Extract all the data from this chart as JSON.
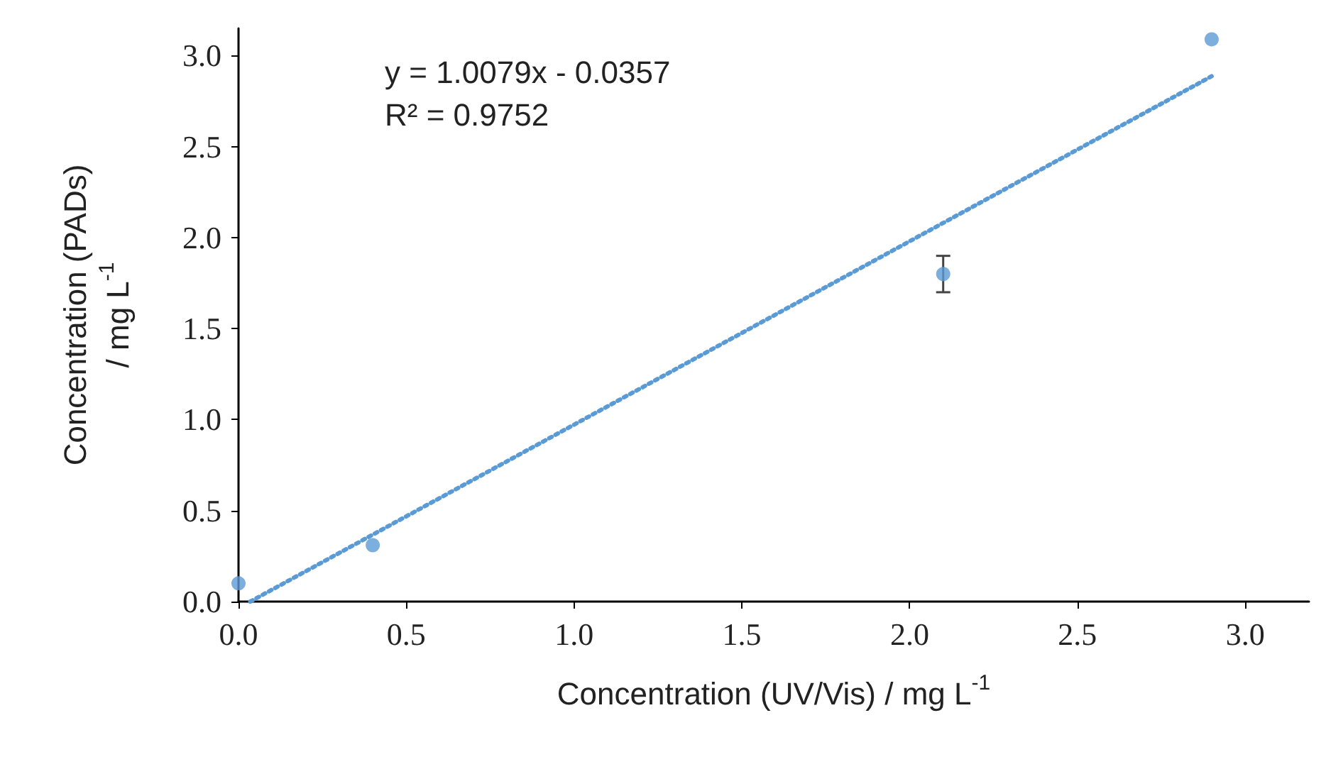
{
  "chart_data": {
    "type": "scatter",
    "xlabel": "Concentration (UV/Vis) / mg L$^{-1}$",
    "ylabel": "Concentration (PADs)\n/ mg L$^{-1}$",
    "annotations": [
      "y = 1.0079x - 0.0357",
      "R² = 0.9752"
    ],
    "x": [
      0,
      0.4,
      2.1,
      2.9
    ],
    "series": [
      {
        "color": "#5b9bd5",
        "values": [
          0.1,
          0.31,
          1.8,
          3.09
        ],
        "errors": [
          null,
          null,
          0.1,
          null
        ],
        "marker": "circle"
      },
      {
        "type": "line",
        "color": "#5b9bd5",
        "x": [
          0.035,
          2.9
        ],
        "values": [
          0,
          2.887
        ],
        "line_style": "dotted",
        "marker": "none"
      }
    ],
    "xlim": [
      0,
      3.19
    ],
    "ylim": [
      0,
      3.15
    ],
    "xticks": [
      {
        "value": 0,
        "label": "0.0"
      },
      0.5,
      {
        "value": 1,
        "label": "1.0"
      },
      1.5,
      {
        "value": 2,
        "label": "2.0"
      },
      2.5,
      {
        "value": 3,
        "label": "3.0"
      }
    ],
    "yticks": [
      {
        "value": 0,
        "label": "0.0"
      },
      0.5,
      {
        "value": 1,
        "label": "1.0"
      },
      1.5,
      {
        "value": 2,
        "label": "2.0"
      },
      2.5,
      {
        "value": 3,
        "label": "3.0"
      }
    ],
    "grid": false
  }
}
